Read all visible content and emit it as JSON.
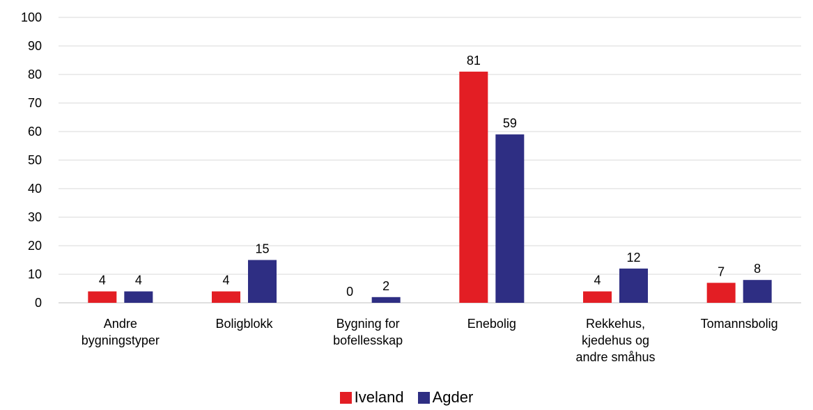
{
  "chart_data": {
    "type": "bar",
    "categories": [
      [
        "Andre",
        "bygningstyper"
      ],
      [
        "Boligblokk"
      ],
      [
        "Bygning for",
        "bofellesskap"
      ],
      [
        "Enebolig"
      ],
      [
        "Rekkehus,",
        "kjedehus og",
        "andre småhus"
      ],
      [
        "Tomannsbolig"
      ]
    ],
    "series": [
      {
        "name": "Iveland",
        "color": "#e31e24",
        "values": [
          4,
          4,
          0,
          81,
          4,
          7
        ]
      },
      {
        "name": "Agder",
        "color": "#2e2e83",
        "values": [
          4,
          15,
          2,
          59,
          12,
          8
        ]
      }
    ],
    "ylim": [
      0,
      100
    ],
    "yticks": [
      0,
      10,
      20,
      30,
      40,
      50,
      60,
      70,
      80,
      90,
      100
    ],
    "grid": true,
    "legend_position": "bottom-center",
    "data_labels": true
  }
}
